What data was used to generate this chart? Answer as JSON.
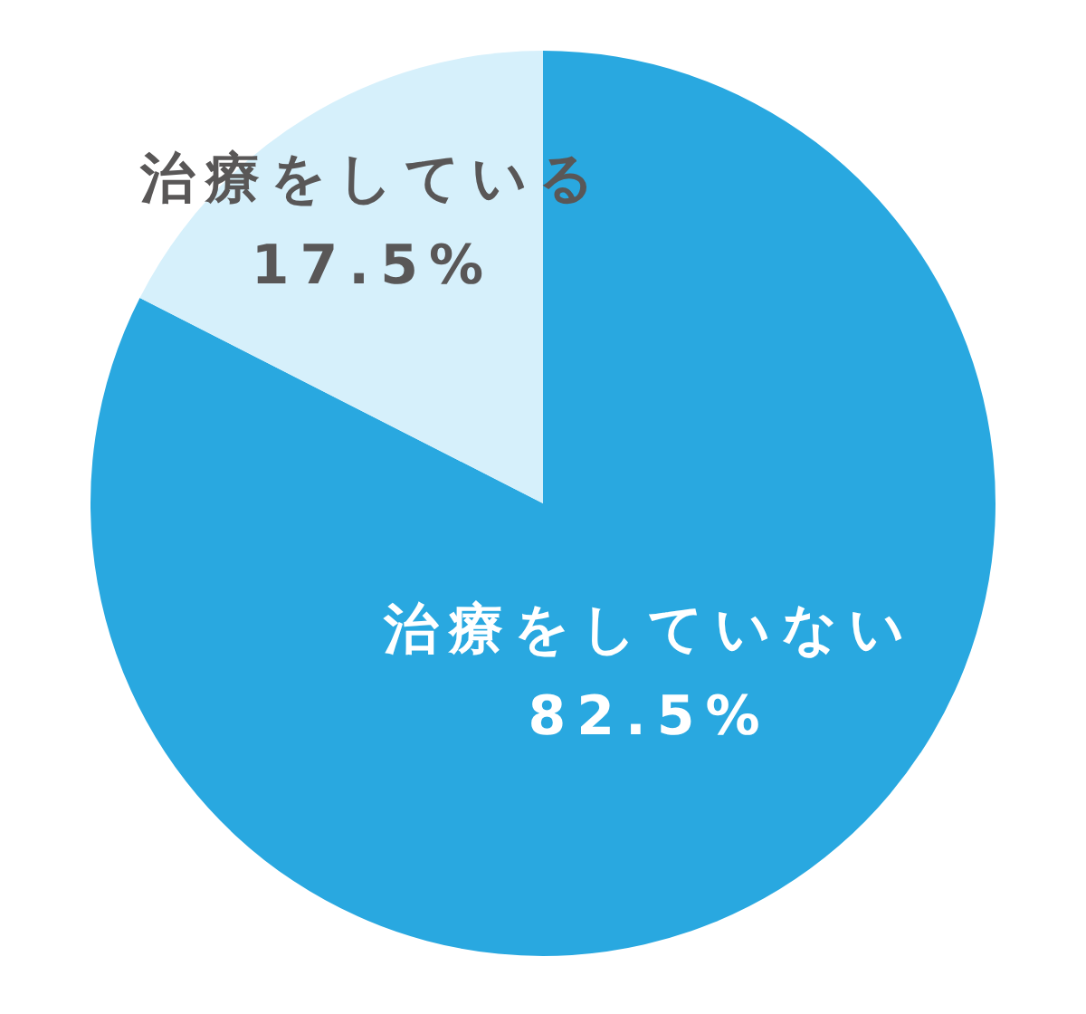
{
  "chart_data": {
    "type": "pie",
    "categories": [
      "治療をしていない",
      "治療をしている"
    ],
    "values": [
      82.5,
      17.5
    ],
    "value_labels": [
      "82.5%",
      "17.5%"
    ],
    "colors": [
      "#29a8e0",
      "#d6f0fb"
    ],
    "legend": false
  }
}
